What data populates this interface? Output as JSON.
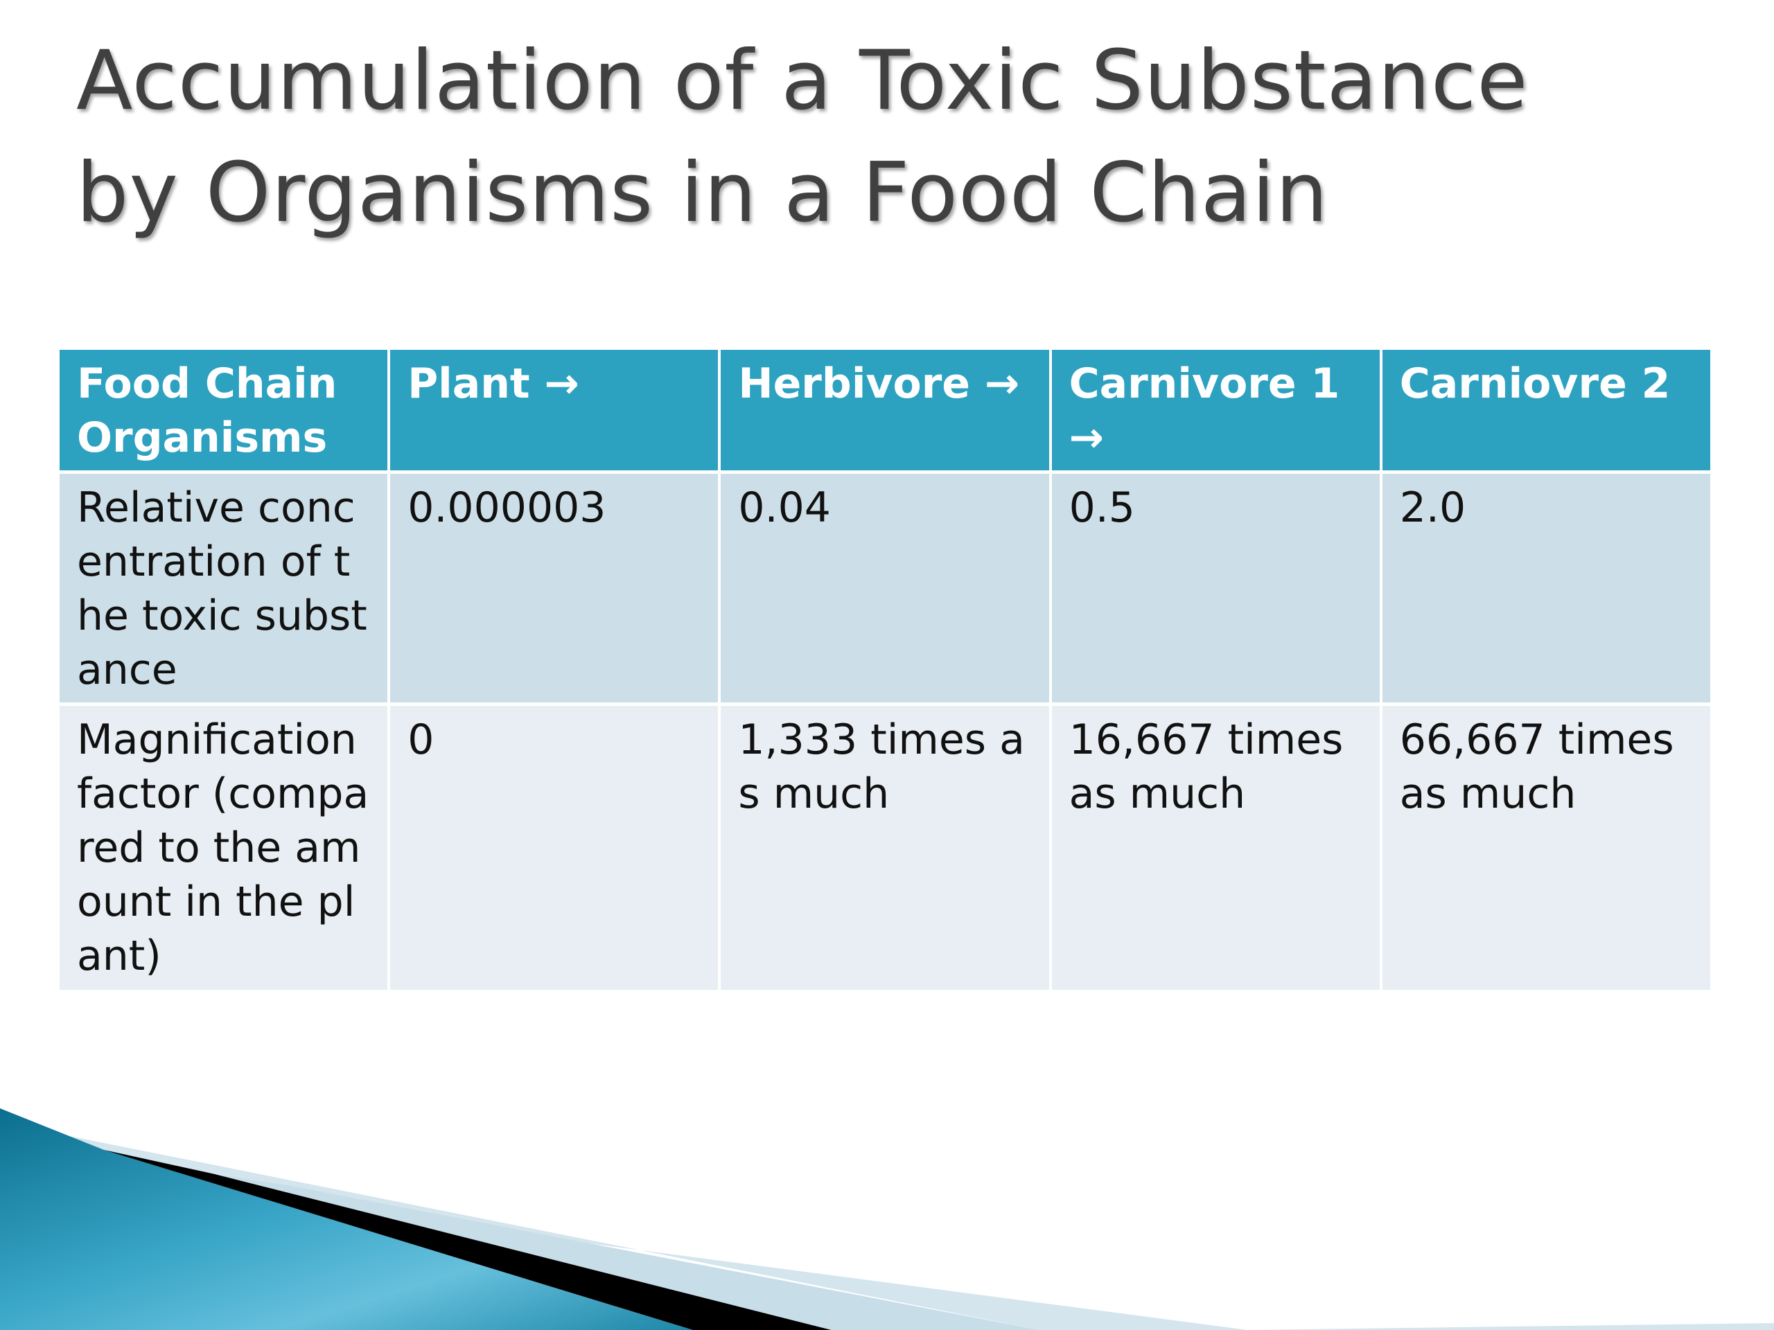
{
  "slide": {
    "title_line1": "Accumulation of a Toxic Substance",
    "title_line2": "by Organisms in a Food Chain"
  },
  "table": {
    "headers": [
      "Food Chain Organisms",
      "Plant →",
      "Herbivore →",
      "Carnivore 1 →",
      "Carniovre 2"
    ],
    "rows": [
      [
        "Relative concentration of the toxic substance",
        "0.000003",
        "0.04",
        "0.5",
        "2.0"
      ],
      [
        "Magnification factor (compared to the amount in the plant)",
        "0",
        "1,333 times as much",
        "16,667 times as much",
        "66,667 times as much"
      ]
    ]
  },
  "colors": {
    "header_bg": "#2da1c0",
    "row1_bg": "#ccdee7",
    "row2_bg": "#e8eef3",
    "title_text": "#404040"
  }
}
